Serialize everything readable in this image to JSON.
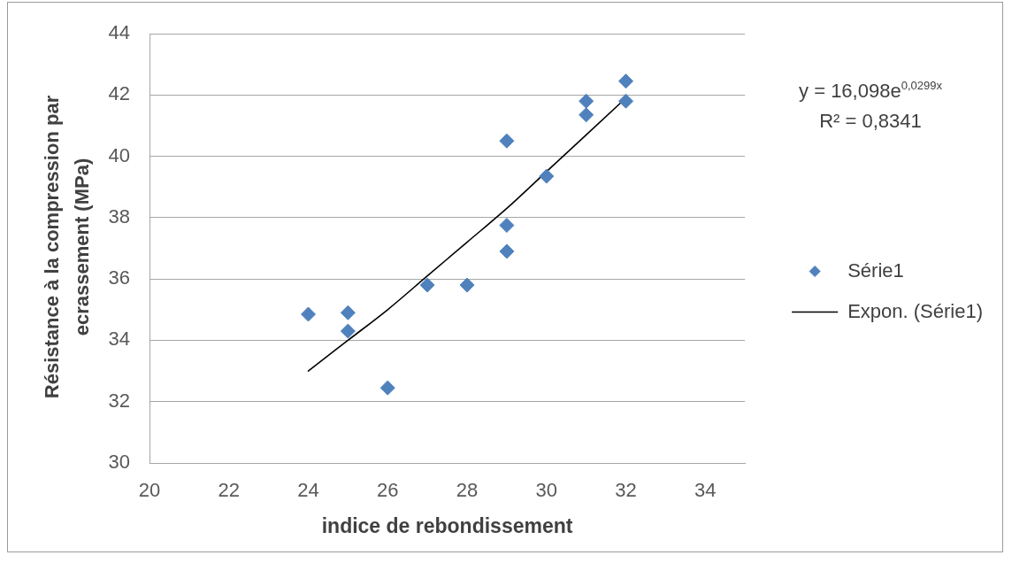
{
  "chart_data": {
    "type": "scatter",
    "xlabel": "indice de rebondissement",
    "ylabel": "Résistance à la compression par ecrassement (MPa)",
    "annotations": [
      "y = 16,098e$^{0,0299x}$",
      "R² = 0,8341"
    ],
    "xlim": [
      20,
      35
    ],
    "xticks": [
      20,
      22,
      24,
      26,
      28,
      30,
      32,
      34
    ],
    "ylim": [
      30,
      44
    ],
    "yticks": [
      30,
      32,
      34,
      36,
      38,
      40,
      42,
      44
    ],
    "grid": "y",
    "legend": "right",
    "series": [
      {
        "name": "Série1",
        "color": "#4f81bd",
        "marker": "diamond",
        "x": [
          24,
          25,
          25,
          26,
          27,
          28,
          29,
          29,
          29,
          30,
          31,
          31,
          32,
          32
        ],
        "values": [
          34.85,
          34.9,
          34.3,
          32.45,
          35.8,
          35.8,
          36.9,
          37.75,
          40.5,
          39.35,
          41.35,
          41.8,
          42.45,
          41.8
        ]
      },
      {
        "name": "Expon. (Série1)",
        "type": "line",
        "color": "#000000",
        "marker": "none",
        "line_style": "solid",
        "x": [
          24,
          25,
          26,
          27,
          28,
          29,
          30,
          31,
          32
        ],
        "values": [
          33.0,
          34.0,
          35.0,
          36.1,
          37.2,
          38.3,
          39.5,
          40.7,
          41.9
        ]
      }
    ]
  }
}
